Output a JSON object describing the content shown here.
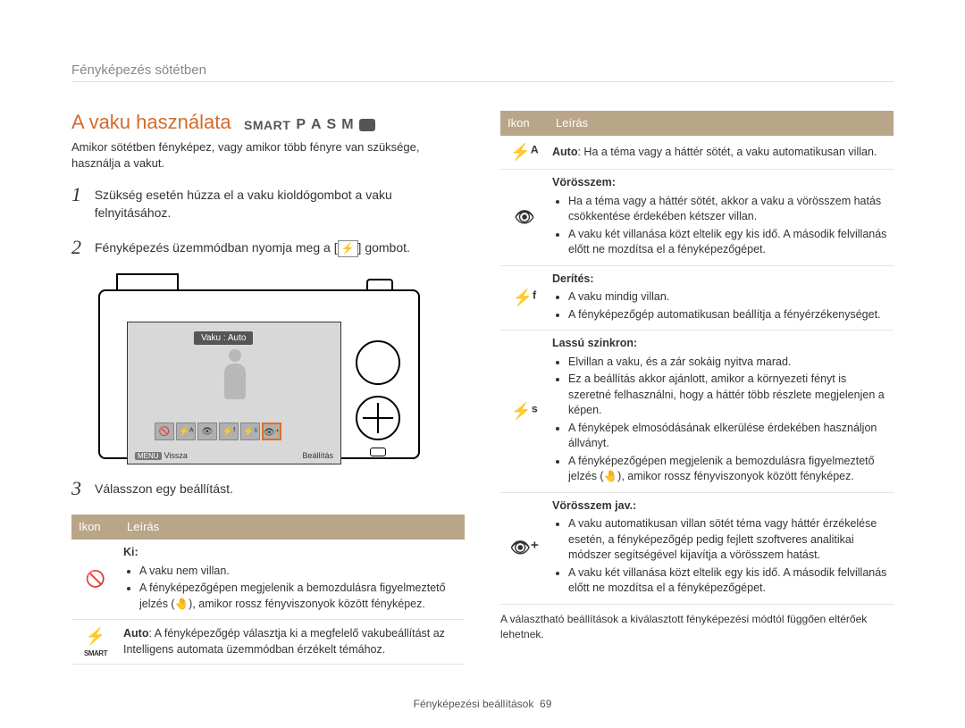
{
  "header": {
    "section": "Fényképezés sötétben"
  },
  "title": "A vaku használata",
  "modes": {
    "smart": "SMART",
    "letters": [
      "P",
      "A",
      "S",
      "M"
    ]
  },
  "intro": "Amikor sötétben fényképez, vagy amikor több fényre van szüksége, használja a vakut.",
  "steps": [
    {
      "num": "1",
      "text": "Szükség esetén húzza el a vaku kioldógombot a vaku felnyitásához."
    },
    {
      "num": "2",
      "text_pre": "Fényképezés üzemmódban nyomja meg a [",
      "text_post": "] gombot.",
      "glyph": "⚡"
    },
    {
      "num": "3",
      "text": "Válasszon egy beállítást."
    }
  ],
  "lcd": {
    "label": "Vaku : Auto",
    "menu": "MENU",
    "back": "Vissza",
    "set": "Beállítás"
  },
  "table_header": {
    "icon": "Ikon",
    "desc": "Leírás"
  },
  "left_rows": [
    {
      "icon": "🚫",
      "title": "Ki:",
      "bullets": [
        "A vaku nem villan.",
        "A fényképezőgépen megjelenik a bemozdulásra figyelmeztető jelzés (🤚), amikor rossz fényviszonyok között fényképez."
      ]
    },
    {
      "icon": "⚡",
      "icon_sub": "SMART",
      "plain": "Auto: A fényképezőgép választja ki a megfelelő vakubeállítást az Intelligens automata üzemmódban érzékelt témához.",
      "plain_bold": "Auto"
    }
  ],
  "right_rows": [
    {
      "icon": "⚡ᴬ",
      "plain": "Auto: Ha a téma vagy a háttér sötét, a vaku automatikusan villan.",
      "plain_bold": "Auto"
    },
    {
      "icon": "👁",
      "title": "Vörösszem:",
      "bullets": [
        "Ha a téma vagy a háttér sötét, akkor a vaku a vörösszem hatás csökkentése érdekében kétszer villan.",
        "A vaku két villanása közt eltelik egy kis idő. A második felvillanás előtt ne mozdítsa el a fényképezőgépet."
      ]
    },
    {
      "icon": "⚡ᶠ",
      "title": "Derítés:",
      "bullets": [
        "A vaku mindig villan.",
        "A fényképezőgép automatikusan beállítja a fényérzékenységet."
      ]
    },
    {
      "icon": "⚡ˢ",
      "title": "Lassú szinkron:",
      "bullets": [
        "Elvillan a vaku, és a zár sokáig nyitva marad.",
        "Ez a beállítás akkor ajánlott, amikor a környezeti fényt is szeretné felhasználni, hogy a háttér több részlete megjelenjen a képen.",
        "A fényképek elmosódásának elkerülése érdekében használjon állványt.",
        "A fényképezőgépen megjelenik a bemozdulásra figyelmeztető jelzés (🤚), amikor rossz fényviszonyok között fényképez."
      ]
    },
    {
      "icon": "👁⁺",
      "title": "Vörösszem jav.:",
      "bullets": [
        "A vaku automatikusan villan sötét téma vagy háttér érzékelése esetén, a fényképezőgép pedig fejlett szoftveres analitikai módszer segítségével kijavítja a vörösszem hatást.",
        "A vaku két villanása közt eltelik egy kis idő. A második felvillanás előtt ne mozdítsa el a fényképezőgépet."
      ]
    }
  ],
  "footnote": "A választható beállítások a kiválasztott fényképezési módtól függően eltérőek lehetnek.",
  "footer": {
    "label": "Fényképezési beállítások",
    "page": "69"
  }
}
